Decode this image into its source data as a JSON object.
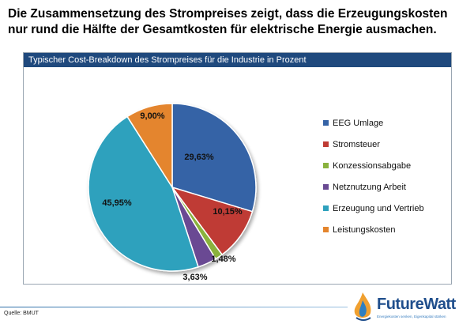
{
  "headline": "Die Zusammensetzung des Strompreises zeigt, dass die Erzeugungskosten nur rund die Hälfte der Gesamtkosten für elektrische Energie ausmachen.",
  "source": "Quelle: BMUT",
  "logo": {
    "name": "FutureWatt",
    "tagline": "Energiekosten senken, Eigenkapital stärken"
  },
  "chart_data": {
    "type": "pie",
    "title": "Typischer Cost-Breakdown des Strompreises für die Industrie in Prozent",
    "legend_position": "right",
    "unit": "%",
    "slices": [
      {
        "label": "EEG Umlage",
        "value": 29.63,
        "display": "29,63%",
        "color": "#3563a6"
      },
      {
        "label": "Stromsteuer",
        "value": 10.15,
        "display": "10,15%",
        "color": "#bf3b34"
      },
      {
        "label": "Konzessionsabgabe",
        "value": 1.48,
        "display": "1,48%",
        "color": "#8ab23d"
      },
      {
        "label": "Netznutzung Arbeit",
        "value": 3.63,
        "display": "3,63%",
        "color": "#6a4a93"
      },
      {
        "label": "Erzeugung und Vertrieb",
        "value": 45.95,
        "display": "45,95%",
        "color": "#2ea1bd"
      },
      {
        "label": "Leistungskosten",
        "value": 9.0,
        "display": "9,00%",
        "color": "#e4852d"
      }
    ]
  }
}
